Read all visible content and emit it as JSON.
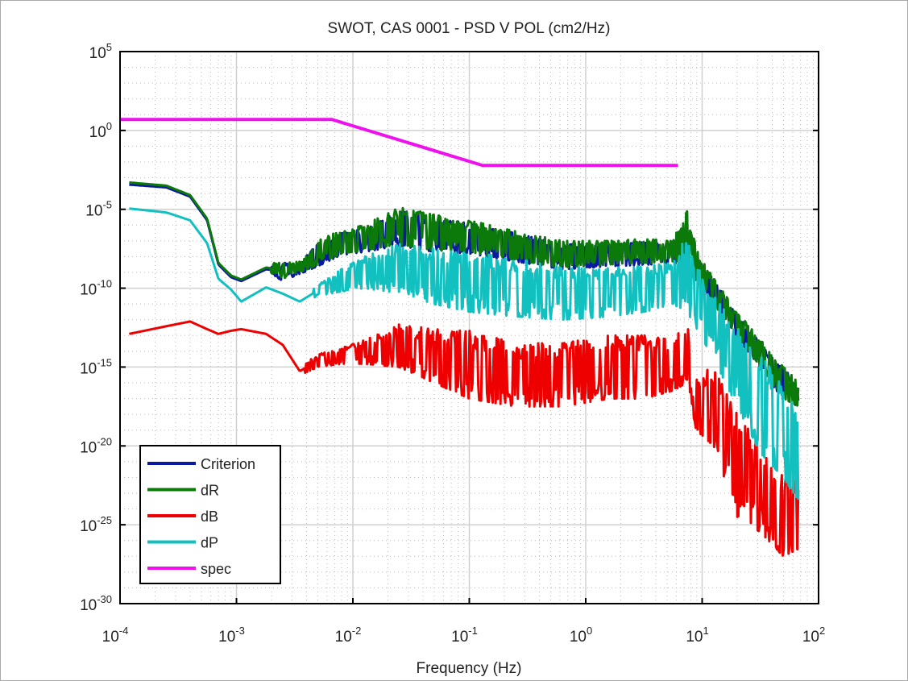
{
  "chart_data": {
    "type": "line",
    "title": "SWOT, CAS 0001 - PSD V POL (cm2/Hz)",
    "xlabel": "Frequency (Hz)",
    "ylabel": "",
    "xscale": "log",
    "yscale": "log",
    "xlim": [
      0.0001,
      100
    ],
    "ylim": [
      1e-30,
      100000
    ],
    "grid": "major solid, minor dotted",
    "legend_position": "bottom-left",
    "xticks": [
      {
        "base": "10",
        "exp": "-4"
      },
      {
        "base": "10",
        "exp": "-3"
      },
      {
        "base": "10",
        "exp": "-2"
      },
      {
        "base": "10",
        "exp": "-1"
      },
      {
        "base": "10",
        "exp": "0"
      },
      {
        "base": "10",
        "exp": "1"
      },
      {
        "base": "10",
        "exp": "2"
      }
    ],
    "yticks": [
      {
        "base": "10",
        "exp": "5"
      },
      {
        "base": "10",
        "exp": "0"
      },
      {
        "base": "10",
        "exp": "-5"
      },
      {
        "base": "10",
        "exp": "-10"
      },
      {
        "base": "10",
        "exp": "-15"
      },
      {
        "base": "10",
        "exp": "-20"
      },
      {
        "base": "10",
        "exp": "-25"
      },
      {
        "base": "10",
        "exp": "-30"
      }
    ],
    "frequency": [
      0.00012,
      0.00025,
      0.0004,
      0.00056,
      0.0007,
      0.0009,
      0.0011,
      0.0018,
      0.0025,
      0.0035,
      0.005,
      0.008,
      0.0126,
      0.025,
      0.05,
      0.1,
      0.25,
      0.63,
      1.6,
      3.2,
      5.6,
      7.4,
      8.9,
      12.6,
      20,
      32,
      50,
      68
    ],
    "series": [
      {
        "name": "Criterion",
        "color": "#0a1aa0",
        "upper": [
          0.00045,
          0.0003,
          8e-05,
          2.5e-06,
          5e-09,
          8e-10,
          4e-10,
          2.5e-09,
          4e-09,
          4e-09,
          6e-08,
          3e-07,
          6e-07,
          8e-06,
          3e-06,
          1.3e-06,
          3e-07,
          6e-08,
          6e-08,
          8e-08,
          6e-08,
          6e-06,
          2e-08,
          3e-10,
          2e-12,
          3e-14,
          8e-16,
          8e-17
        ],
        "lower": [
          0.0003,
          0.0002,
          5e-05,
          1.6e-06,
          2e-09,
          3e-10,
          2e-10,
          1e-09,
          3e-10,
          8e-10,
          2.5e-09,
          1.3e-08,
          2e-08,
          5e-08,
          2e-08,
          1.6e-08,
          5e-09,
          1.6e-09,
          2.5e-09,
          3e-09,
          4e-09,
          2.5e-09,
          2.5e-10,
          8e-12,
          8e-14,
          8e-16,
          8e-18,
          2.5e-18
        ]
      },
      {
        "name": "dR",
        "color": "#0b7a0b",
        "upper": [
          0.00063,
          0.0004,
          0.0001,
          3.2e-06,
          6.3e-09,
          1e-09,
          5e-10,
          3.2e-09,
          5e-09,
          5e-09,
          1e-07,
          5e-07,
          1e-06,
          1.3e-05,
          5e-06,
          2e-06,
          4e-07,
          1e-07,
          1e-07,
          1.3e-07,
          1e-07,
          1e-05,
          3.2e-08,
          4e-10,
          3.2e-12,
          5e-14,
          1e-15,
          1e-16
        ],
        "lower": [
          0.0004,
          0.00025,
          6.3e-05,
          2e-06,
          2.5e-09,
          4e-10,
          2.5e-10,
          1.3e-09,
          4e-10,
          1e-09,
          3.2e-09,
          1.6e-08,
          2.5e-08,
          6.3e-08,
          2.5e-08,
          2e-08,
          6.3e-09,
          2e-09,
          3.2e-09,
          4e-09,
          5e-09,
          3.2e-09,
          3.2e-10,
          1e-11,
          1e-13,
          1e-15,
          1e-17,
          3.2e-18
        ]
      },
      {
        "name": "dB",
        "color": "#ee0000",
        "upper": [
          1.6e-13,
          5e-13,
          1e-12,
          3.2e-13,
          1.6e-13,
          2.5e-13,
          3.2e-13,
          1.6e-13,
          3.2e-14,
          1e-15,
          6.3e-15,
          1.6e-14,
          5e-14,
          5e-13,
          2.5e-13,
          2e-13,
          3.2e-14,
          3.2e-14,
          1e-13,
          1e-13,
          5e-14,
          6.3e-13,
          3.2e-16,
          1e-15,
          1e-18,
          1e-20,
          1e-22,
          1e-22
        ],
        "lower": [
          1e-13,
          3e-13,
          6e-13,
          2e-13,
          1e-13,
          1.6e-13,
          2e-13,
          1e-13,
          2e-14,
          3e-16,
          1e-15,
          1.6e-15,
          1.6e-15,
          1e-15,
          1e-16,
          1e-17,
          3.2e-18,
          3.2e-18,
          1e-17,
          1e-17,
          3.2e-17,
          1e-16,
          1e-19,
          1e-20,
          3.2e-25,
          3.2e-26,
          1e-27,
          3.2e-27
        ]
      },
      {
        "name": "dP",
        "color": "#12c0c0",
        "upper": [
          1.4e-05,
          8e-06,
          2.5e-06,
          1e-07,
          6.3e-10,
          1.3e-10,
          2e-11,
          1.6e-10,
          6.3e-11,
          2e-11,
          1.6e-10,
          1.6e-09,
          1e-08,
          6.3e-08,
          3.2e-08,
          1.6e-08,
          1e-08,
          2.5e-09,
          2e-09,
          2.5e-09,
          4e-09,
          3.2e-07,
          3.2e-09,
          3.2e-11,
          3.2e-13,
          1e-14,
          1e-16,
          3.2e-18
        ],
        "lower": [
          9e-06,
          5e-06,
          1.6e-06,
          5e-08,
          2.5e-10,
          5e-11,
          1e-11,
          8e-11,
          3.2e-11,
          1e-11,
          3.2e-11,
          6.3e-11,
          1e-10,
          5e-11,
          1e-11,
          3.2e-12,
          1.6e-12,
          1e-12,
          1.6e-12,
          3.2e-12,
          1e-11,
          3.2e-12,
          3.2e-13,
          3.2e-15,
          3.2e-18,
          3.2e-21,
          1e-22,
          3.2e-24
        ]
      },
      {
        "name": "spec",
        "color": "#ee11ee",
        "points": [
          [
            0.0001,
            5
          ],
          [
            0.0066,
            5
          ],
          [
            0.13,
            0.006
          ],
          [
            6.2,
            0.006
          ]
        ]
      }
    ]
  }
}
